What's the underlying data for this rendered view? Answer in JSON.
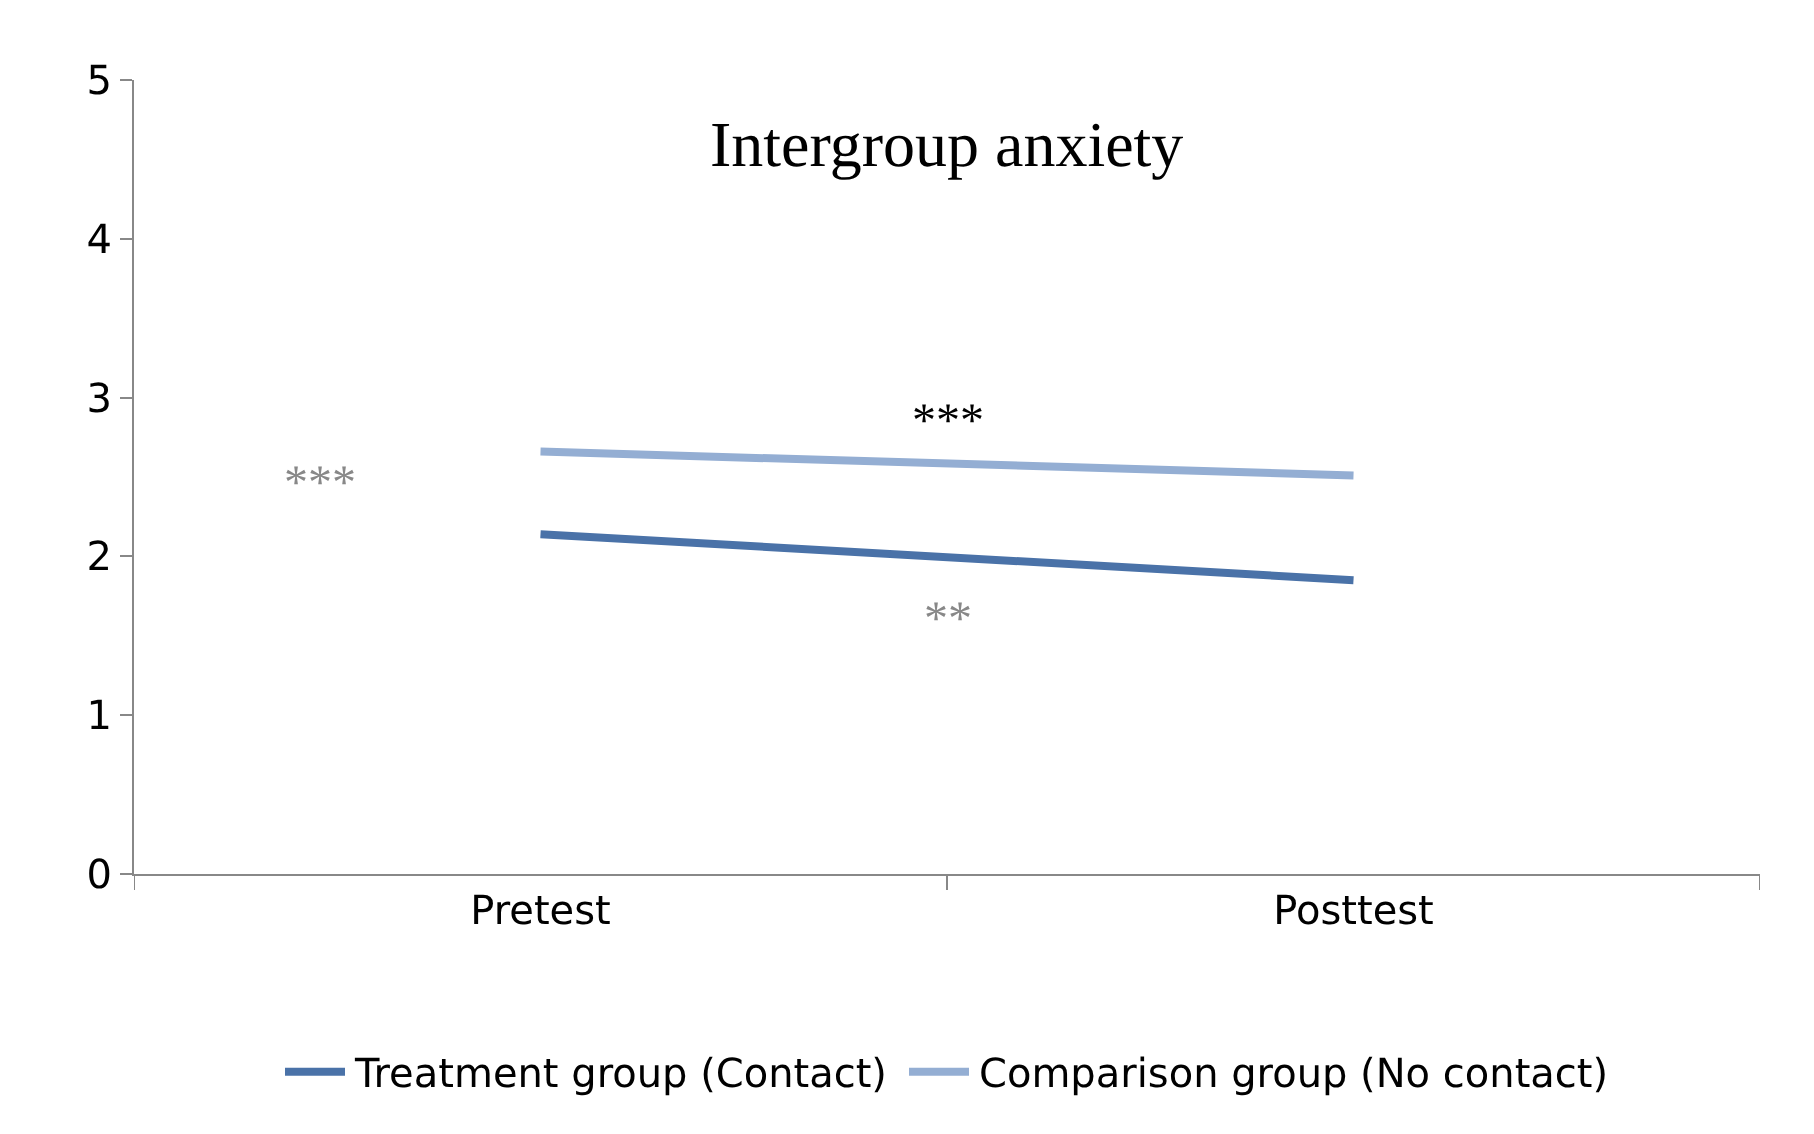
{
  "chart_data": {
    "type": "line",
    "title": "Intergroup anxiety",
    "categories": [
      "Pretest",
      "Posttest"
    ],
    "series": [
      {
        "name": "Treatment group (Contact)",
        "color": "#4a72a8",
        "values": [
          2.14,
          1.85
        ]
      },
      {
        "name": "Comparison group (No contact)",
        "color": "#94aed3",
        "values": [
          2.66,
          2.51
        ]
      }
    ],
    "ylim": [
      0,
      5
    ],
    "yticks": [
      0,
      1,
      2,
      3,
      4,
      5
    ],
    "legend": "bottom",
    "marker": "none",
    "line_style": "solid",
    "annotations": [
      "***",
      "***",
      "**"
    ]
  }
}
